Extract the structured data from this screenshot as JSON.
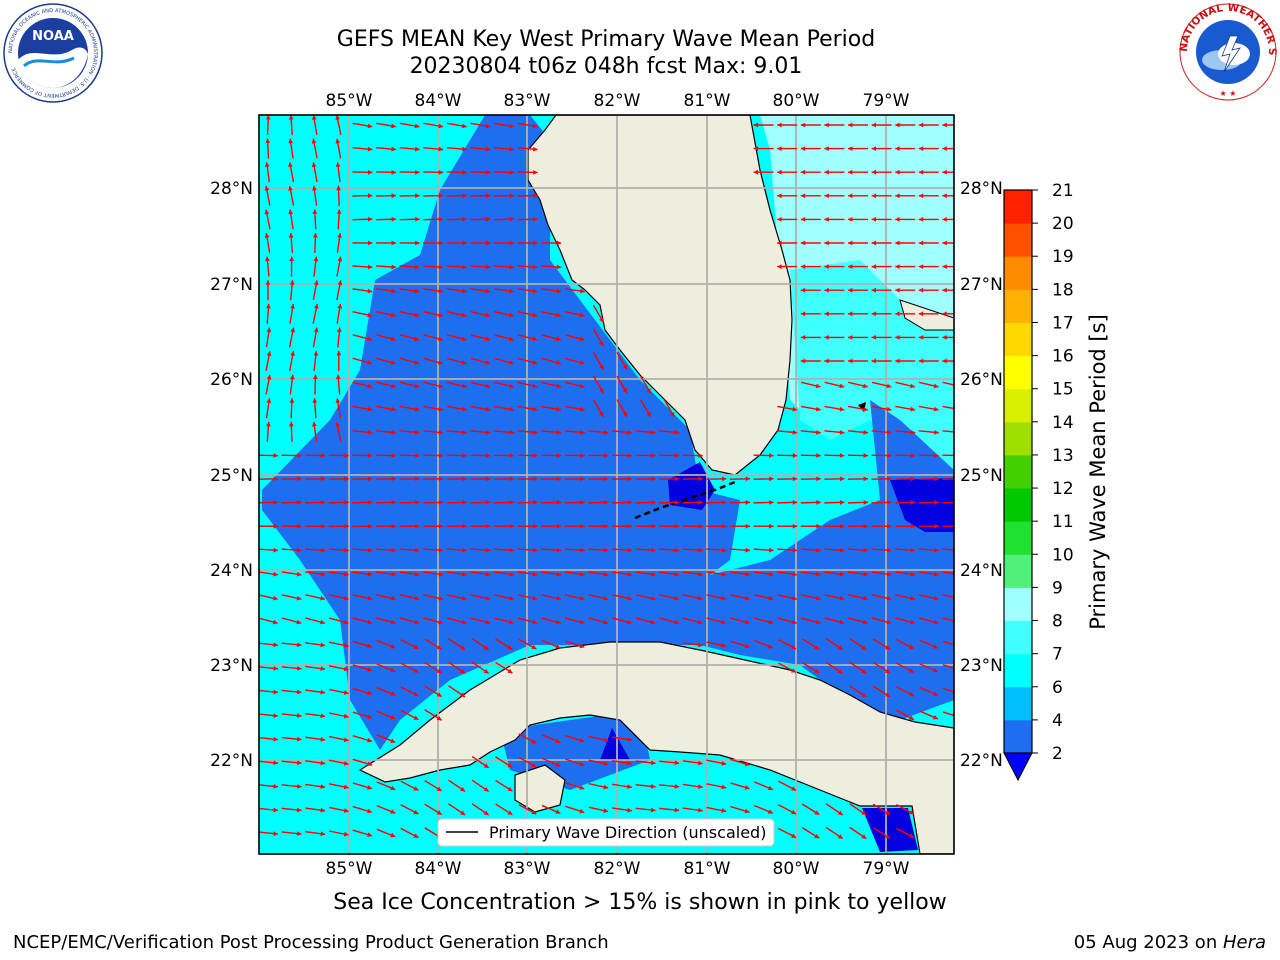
{
  "header": {
    "title_line1": "GEFS MEAN Key West Primary Wave Mean Period",
    "title_line2": "20230804 t06z 048h fcst   Max: 9.01"
  },
  "logos": {
    "noaa_text": "NOAA",
    "noaa_ring_text": "NATIONAL OCEANIC AND ATMOSPHERIC ADMINISTRATION · U.S. DEPARTMENT OF COMMERCE",
    "nws_ring_text": "NATIONAL WEATHER SERVICE"
  },
  "map": {
    "lon_labels": [
      "85°W",
      "84°W",
      "83°W",
      "82°W",
      "81°W",
      "80°W",
      "79°W"
    ],
    "lat_labels": [
      "28°N",
      "27°N",
      "26°N",
      "25°N",
      "24°N",
      "23°N",
      "22°N"
    ],
    "legend_label": "Primary Wave Direction (unscaled)",
    "arrow_color": "#ff0000",
    "land_color": "#efedde",
    "grid_color": "#b0b0b0"
  },
  "colorbar": {
    "label": "Primary Wave Mean Period [s]",
    "ticks": [
      "2",
      "4",
      "6",
      "7",
      "8",
      "9",
      "10",
      "11",
      "12",
      "13",
      "14",
      "15",
      "16",
      "17",
      "18",
      "19",
      "20",
      "21"
    ],
    "colors": [
      "#1e6ff0",
      "#00bfff",
      "#00ffff",
      "#40ffff",
      "#a0ffff",
      "#50f07a",
      "#20e030",
      "#00c800",
      "#44d000",
      "#a0e000",
      "#d8f000",
      "#ffff00",
      "#ffd800",
      "#ffb000",
      "#ff8c00",
      "#ff5000",
      "#ff2000"
    ],
    "under_color": "#0000ff"
  },
  "subtitle": "Sea Ice Concentration > 15% is shown in pink to yellow",
  "footer": {
    "left": "NCEP/EMC/Verification Post Processing Product Generation Branch",
    "right_date": "05 Aug 2023 on ",
    "right_host": "Hera"
  }
}
